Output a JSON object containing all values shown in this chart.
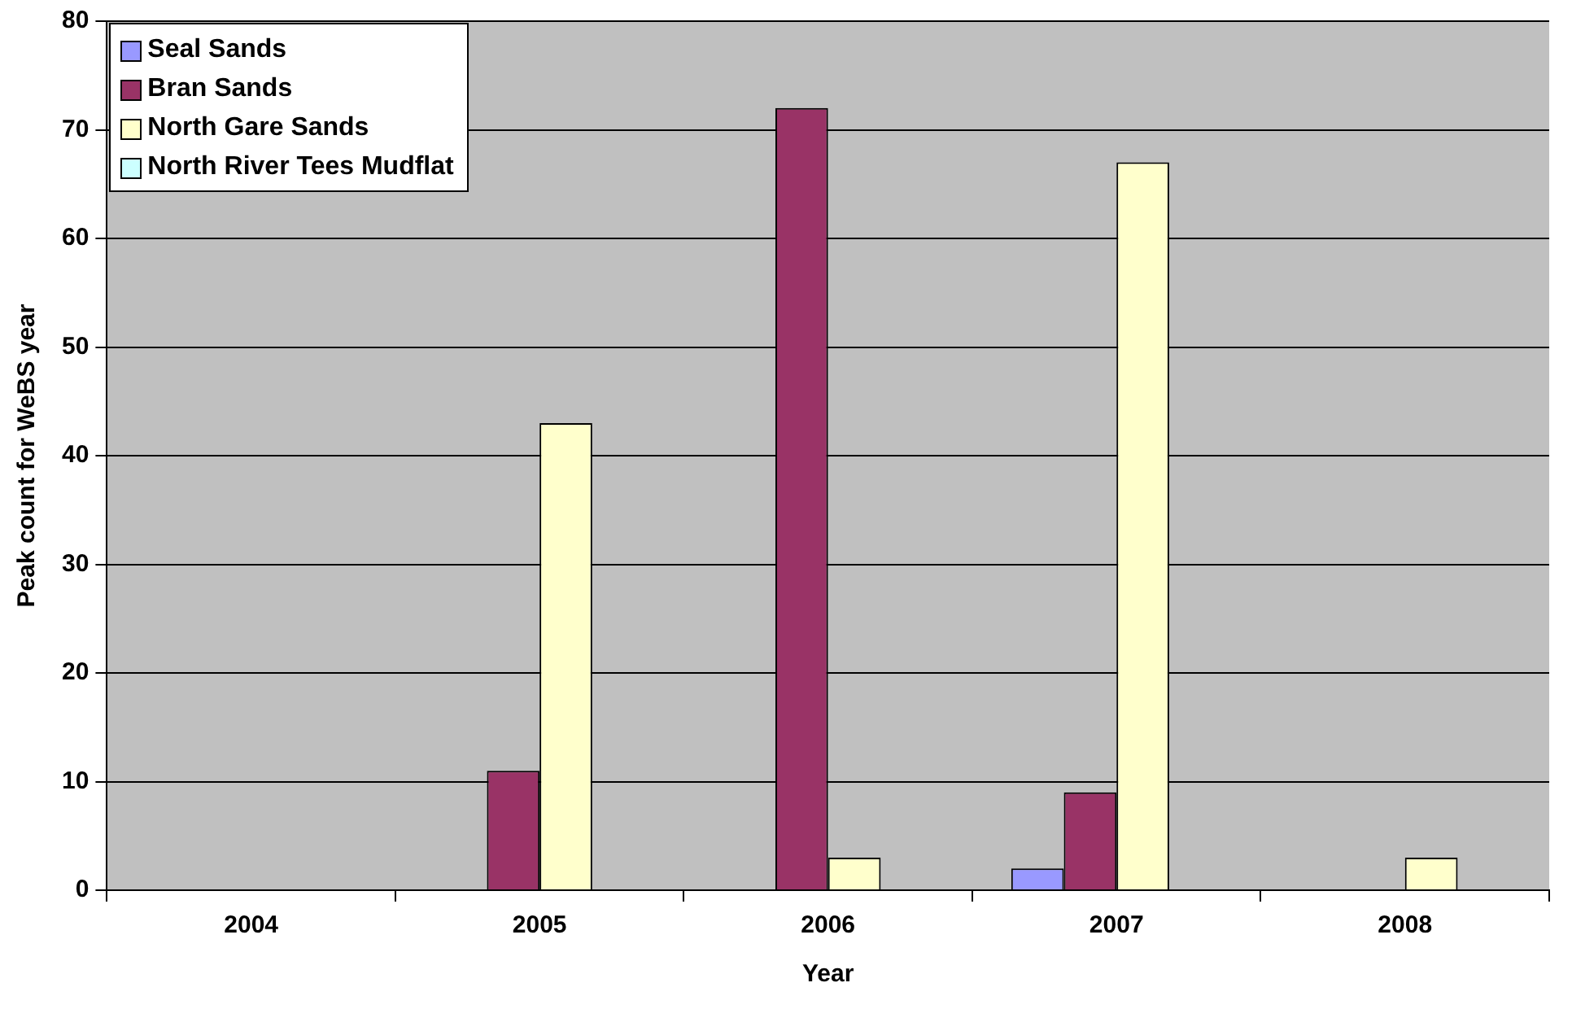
{
  "chart_data": {
    "type": "bar",
    "xlabel": "Year",
    "ylabel": "Peak count for WeBS year",
    "categories": [
      "2004",
      "2005",
      "2006",
      "2007",
      "2008"
    ],
    "series": [
      {
        "name": "Seal Sands",
        "color": "#9999ff",
        "values": [
          0,
          0,
          0,
          2,
          0
        ]
      },
      {
        "name": "Bran Sands",
        "color": "#993366",
        "values": [
          0,
          11,
          72,
          9,
          0
        ]
      },
      {
        "name": "North Gare Sands",
        "color": "#ffffcc",
        "values": [
          0,
          43,
          3,
          67,
          3
        ]
      },
      {
        "name": "North River Tees Mudflat",
        "color": "#ccffff",
        "values": [
          0,
          0,
          0,
          0,
          0
        ]
      }
    ],
    "ylim": [
      0,
      80
    ],
    "yticks": [
      0,
      10,
      20,
      30,
      40,
      50,
      60,
      70,
      80
    ],
    "grid": "y",
    "legend": "top left"
  }
}
